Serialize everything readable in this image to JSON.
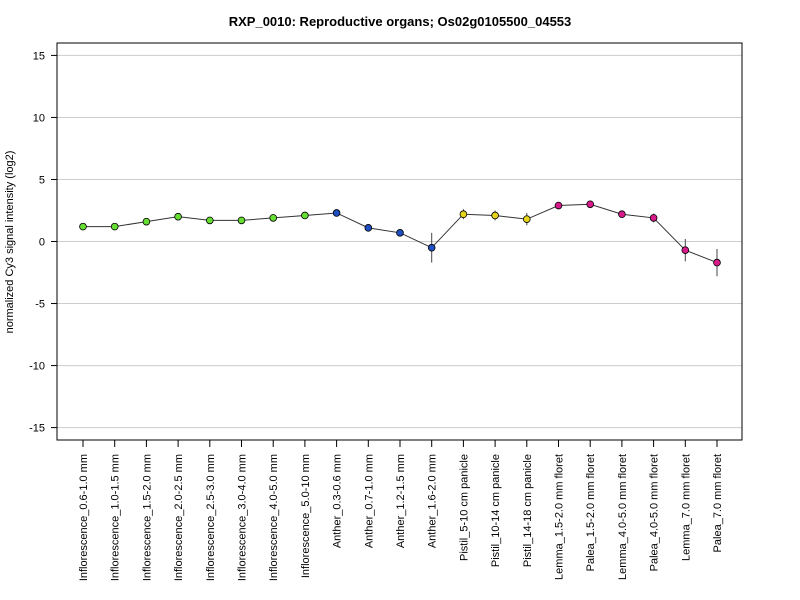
{
  "chart_data": {
    "type": "line",
    "title": "RXP_0010: Reproductive organs; Os02g0105500_04553",
    "xlabel": "",
    "ylabel": "normalized Cy3 signal intensity (log2)",
    "ylim": [
      -16,
      16
    ],
    "yticks": [
      15,
      10,
      5,
      0,
      -5,
      -10,
      -15
    ],
    "grid": true,
    "categories": [
      "Inflorescence_0.6-1.0 mm",
      "Inflorescence_1.0-1.5 mm",
      "Inflorescence_1.5-2.0 mm",
      "Inflorescence_2.0-2.5 mm",
      "Inflorescence_2.5-3.0 mm",
      "Inflorescence_3.0-4.0 mm",
      "Inflorescence_4.0-5.0 mm",
      "Inflorescence_5.0-10 mm",
      "Anther_0.3-0.6 mm",
      "Anther_0.7-1.0 mm",
      "Anther_1.2-1.5 mm",
      "Anther_1.6-2.0 mm",
      "Pistil_5-10 cm panicle",
      "Pistil_10-14 cm panicle",
      "Pistil_14-18 cm panicle",
      "Lemma_1.5-2.0 mm floret",
      "Palea_1.5-2.0 mm floret",
      "Lemma_4.0-5.0 mm floret",
      "Palea_4.0-5.0 mm floret",
      "Lemma_7.0 mm floret",
      "Palea_7.0 mm floret"
    ],
    "values": [
      1.2,
      1.2,
      1.6,
      2.0,
      1.7,
      1.7,
      1.9,
      2.1,
      2.3,
      1.1,
      0.7,
      -0.5,
      2.2,
      2.1,
      1.8,
      2.9,
      3.0,
      2.2,
      1.9,
      -0.7,
      -1.7
    ],
    "error": [
      0.15,
      0.15,
      0.2,
      0.15,
      0.15,
      0.15,
      0.15,
      0.15,
      0.15,
      0.3,
      0.15,
      1.2,
      0.4,
      0.4,
      0.5,
      0.15,
      0.15,
      0.15,
      0.35,
      0.9,
      1.1
    ],
    "point_colors": [
      "#66dd33",
      "#66dd33",
      "#66dd33",
      "#66dd33",
      "#66dd33",
      "#66dd33",
      "#66dd33",
      "#66dd33",
      "#1f4fbf",
      "#1f4fbf",
      "#1f4fbf",
      "#1f4fbf",
      "#e6d41a",
      "#e6d41a",
      "#e6d41a",
      "#d81b8a",
      "#d81b8a",
      "#d81b8a",
      "#d81b8a",
      "#d81b8a",
      "#d81b8a"
    ],
    "line_color": "#333333",
    "grid_color": "#cccccc"
  }
}
